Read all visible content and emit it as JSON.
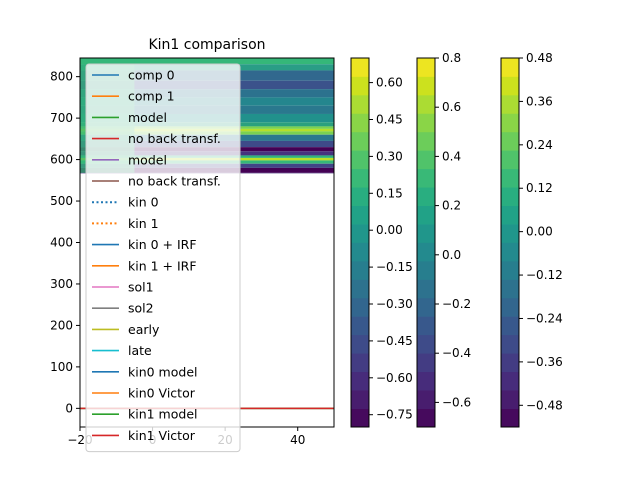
{
  "chart_data": [
    {
      "type": "heatmap",
      "title": "Kin1 comparison",
      "xlabel": "",
      "ylabel": "",
      "xlim": [
        -20,
        50
      ],
      "ylim": [
        -45,
        845
      ],
      "x_ticks": [
        -20,
        0,
        20,
        40
      ],
      "y_ticks": [
        0,
        100,
        200,
        300,
        400,
        500,
        600,
        700,
        800
      ],
      "x_tick_labels": [
        "−20",
        "0",
        "20",
        "40"
      ],
      "y_tick_labels": [
        "0",
        "100",
        "200",
        "300",
        "400",
        "500",
        "600",
        "700",
        "800"
      ],
      "heatmap_extent": {
        "x": [
          -20,
          50
        ],
        "y": [
          568,
          845
        ]
      },
      "heatmap_bands": [
        {
          "y": 845,
          "color": "#35b779"
        },
        {
          "y": 830,
          "color": "#2a9d86"
        },
        {
          "y": 815,
          "color": "#31688e"
        },
        {
          "y": 790,
          "color": "#3b528b"
        },
        {
          "y": 770,
          "color": "#2c728e"
        },
        {
          "y": 750,
          "color": "#24868e"
        },
        {
          "y": 730,
          "color": "#2a788e"
        },
        {
          "y": 710,
          "color": "#21918c"
        },
        {
          "y": 690,
          "color": "#2ba07e"
        },
        {
          "y": 680,
          "color": "#7ad151"
        },
        {
          "y": 674,
          "color": "#b5de2b"
        },
        {
          "y": 668,
          "color": "#7ad151"
        },
        {
          "y": 660,
          "color": "#2a788e"
        },
        {
          "y": 645,
          "color": "#3e4a89"
        },
        {
          "y": 630,
          "color": "#440154"
        },
        {
          "y": 620,
          "color": "#46327e"
        },
        {
          "y": 610,
          "color": "#2eb37c"
        },
        {
          "y": 604,
          "color": "#bddf26"
        },
        {
          "y": 598,
          "color": "#35b779"
        },
        {
          "y": 590,
          "color": "#414487"
        },
        {
          "y": 580,
          "color": "#440154"
        },
        {
          "y": 568,
          "color": "#46327e"
        }
      ],
      "left_region": {
        "x": [
          -20,
          -5
        ],
        "color": "#35b779"
      },
      "series": [
        {
          "name": "comp 0",
          "color": "#1f77b4",
          "style": "solid"
        },
        {
          "name": "comp 1",
          "color": "#ff7f0e",
          "style": "solid"
        },
        {
          "name": "model",
          "color": "#2ca02c",
          "style": "solid"
        },
        {
          "name": "no back transf.",
          "color": "#d62728",
          "style": "solid"
        },
        {
          "name": "model",
          "color": "#9467bd",
          "style": "solid"
        },
        {
          "name": "no back transf.",
          "color": "#8c564b",
          "style": "solid"
        },
        {
          "name": "kin 0",
          "color": "#1f77b4",
          "style": "dotted"
        },
        {
          "name": "kin 1",
          "color": "#ff7f0e",
          "style": "dotted"
        },
        {
          "name": "kin 0 + IRF",
          "color": "#1f77b4",
          "style": "solid"
        },
        {
          "name": "kin 1 + IRF",
          "color": "#ff7f0e",
          "style": "solid"
        },
        {
          "name": "sol1",
          "color": "#e377c2",
          "style": "solid"
        },
        {
          "name": "sol2",
          "color": "#7f7f7f",
          "style": "solid"
        },
        {
          "name": "early",
          "color": "#bcbd22",
          "style": "solid"
        },
        {
          "name": "late",
          "color": "#17becf",
          "style": "solid"
        },
        {
          "name": "kin0 model",
          "color": "#1f77b4",
          "style": "solid"
        },
        {
          "name": "kin0 Victor",
          "color": "#ff7f0e",
          "style": "solid"
        },
        {
          "name": "kin1 model",
          "color": "#2ca02c",
          "style": "solid"
        },
        {
          "name": "kin1 Victor",
          "color": "#d62728",
          "style": "solid"
        }
      ],
      "lines": [
        {
          "name": "kin0 model",
          "color": "#1f77b4",
          "x": [
            -20,
            50
          ],
          "y": [
            0,
            0
          ]
        },
        {
          "name": "kin0 Victor",
          "color": "#ff7f0e",
          "x": [
            -20,
            50
          ],
          "y": [
            0,
            0
          ]
        },
        {
          "name": "kin1 model",
          "color": "#2ca02c",
          "x": [
            -20,
            50
          ],
          "y": [
            0,
            0
          ]
        },
        {
          "name": "kin1 Victor",
          "color": "#d62728",
          "x": [
            -20,
            50
          ],
          "y": [
            0,
            0
          ]
        }
      ],
      "legend_location": "upper-left"
    },
    {
      "type": "colorbar",
      "colormap": "viridis",
      "range": [
        -0.8,
        0.7
      ],
      "tick_values": [
        -0.75,
        -0.6,
        -0.45,
        -0.3,
        -0.15,
        0.0,
        0.15,
        0.3,
        0.45,
        0.6
      ],
      "tick_labels": [
        "−0.75",
        "−0.60",
        "−0.45",
        "−0.30",
        "−0.15",
        "0.00",
        "0.15",
        "0.30",
        "0.45",
        "0.60"
      ],
      "levels": 20
    },
    {
      "type": "colorbar",
      "colormap": "viridis",
      "range": [
        -0.7,
        0.8
      ],
      "tick_values": [
        -0.6,
        -0.4,
        -0.2,
        0.0,
        0.2,
        0.4,
        0.6,
        0.8
      ],
      "tick_labels": [
        "−0.6",
        "−0.4",
        "−0.2",
        "0.0",
        "0.2",
        "0.4",
        "0.6",
        "0.8"
      ],
      "levels": 20
    },
    {
      "type": "colorbar",
      "colormap": "viridis",
      "range": [
        -0.54,
        0.48
      ],
      "tick_values": [
        -0.48,
        -0.36,
        -0.24,
        -0.12,
        0.0,
        0.12,
        0.24,
        0.36,
        0.48
      ],
      "tick_labels": [
        "−0.48",
        "−0.36",
        "−0.24",
        "−0.12",
        "0.00",
        "0.12",
        "0.24",
        "0.36",
        "0.48"
      ],
      "levels": 20
    }
  ]
}
